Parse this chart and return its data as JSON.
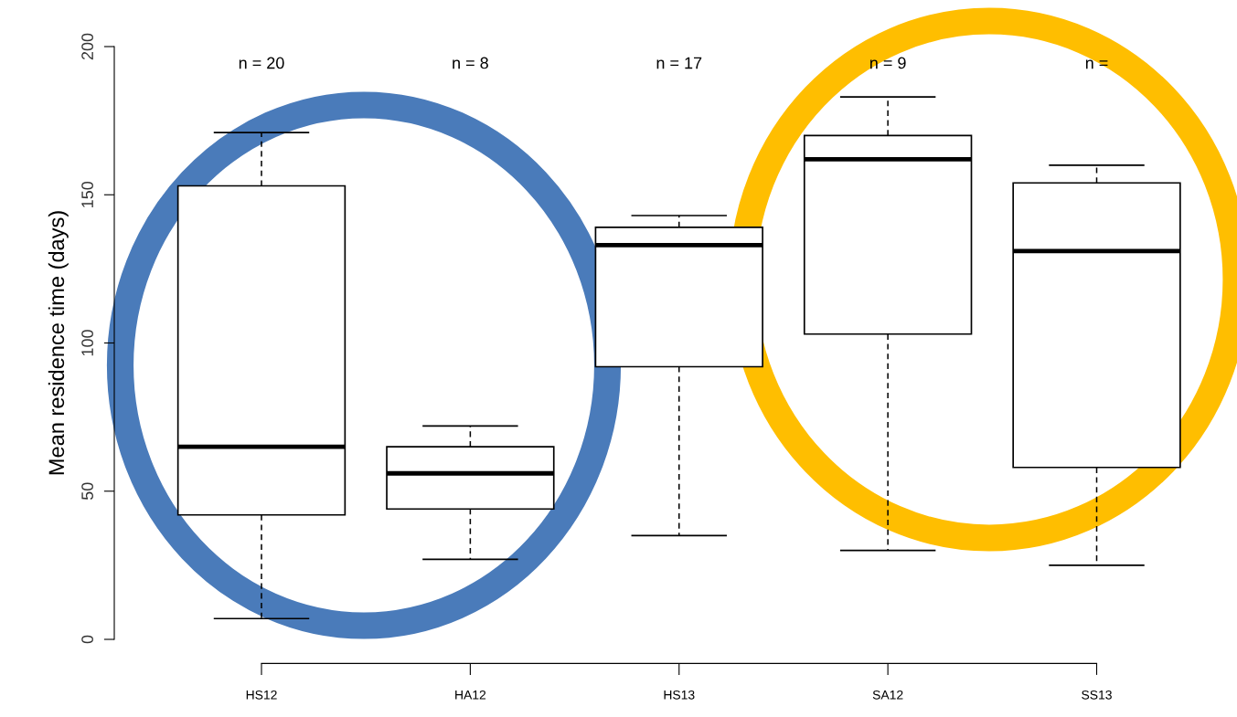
{
  "chart_data": {
    "type": "box",
    "ylabel": "Mean residence time (days)",
    "categories": [
      "HS12",
      "HA12",
      "HS13",
      "SA12",
      "SS13"
    ],
    "boxes": [
      {
        "low": 7,
        "q1": 42,
        "median": 65,
        "q3": 153,
        "high": 171
      },
      {
        "low": 27,
        "q1": 44,
        "median": 56,
        "q3": 65,
        "high": 72
      },
      {
        "low": 35,
        "q1": 92,
        "median": 133,
        "q3": 139,
        "high": 143
      },
      {
        "low": 30,
        "q1": 103,
        "median": 162,
        "q3": 170,
        "high": 183
      },
      {
        "low": 25,
        "q1": 58,
        "median": 131,
        "q3": 154,
        "high": 160
      }
    ],
    "annotations": [
      "n = 20",
      "n = 8",
      "n = 17",
      "n = 9",
      "n ="
    ],
    "ylim": [
      0,
      200
    ],
    "yticks": [
      0,
      50,
      100,
      150,
      200
    ],
    "grid": false
  }
}
